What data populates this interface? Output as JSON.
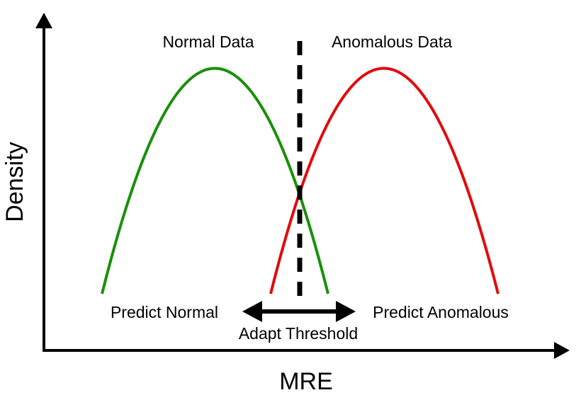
{
  "labels": {
    "normal_data": "Normal Data",
    "anomalous_data": "Anomalous Data",
    "predict_normal": "Predict Normal",
    "predict_anomalous": "Predict Anomalous",
    "adapt_threshold": "Adapt Threshold",
    "x_axis": "MRE",
    "y_axis": "Density"
  },
  "colors": {
    "normal_curve": "#1a8f0a",
    "anomalous_curve": "#e00c0c",
    "axes": "#000000",
    "threshold": "#000000"
  }
}
